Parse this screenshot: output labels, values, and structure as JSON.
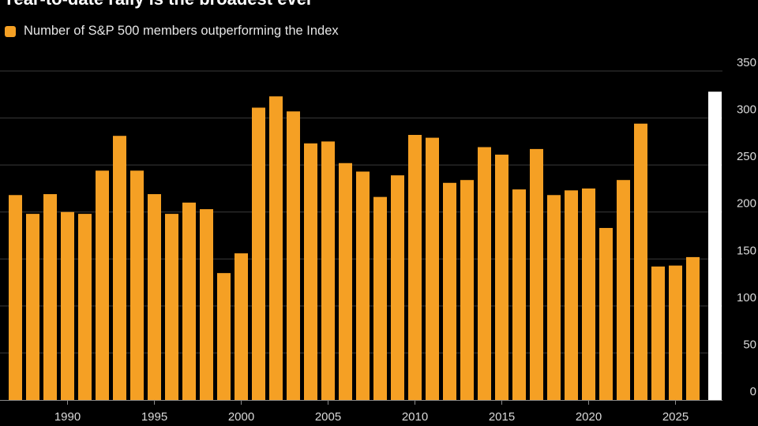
{
  "colors": {
    "background": "#000000",
    "bar": "#f5a024",
    "grid": "#3a3a3a",
    "current": "#ffffff",
    "text": "#d9d9d9"
  },
  "chart_data": {
    "type": "bar",
    "title": "Year-to-date rally is the broadest ever",
    "legend": [
      "Number of S&P 500 members outperforming the Index"
    ],
    "legend_placement": "top-left",
    "ylim": [
      0,
      350
    ],
    "yticks": [
      0,
      50,
      100,
      150,
      200,
      250,
      300,
      350
    ],
    "xticks": [
      1990,
      1995,
      2000,
      2005,
      2010,
      2015,
      2020,
      2025
    ],
    "grid": true,
    "categories": [
      1987,
      1988,
      1989,
      1990,
      1991,
      1992,
      1993,
      1994,
      1995,
      1996,
      1997,
      1998,
      1999,
      2000,
      2001,
      2002,
      2003,
      2004,
      2005,
      2006,
      2007,
      2008,
      2009,
      2010,
      2011,
      2012,
      2013,
      2014,
      2015,
      2016,
      2017,
      2018,
      2019,
      2020,
      2021,
      2022,
      2023,
      2024,
      2025,
      2026
    ],
    "values": [
      218,
      198,
      219,
      200,
      198,
      244,
      281,
      244,
      219,
      198,
      210,
      203,
      135,
      156,
      311,
      323,
      307,
      273,
      275,
      252,
      243,
      216,
      239,
      282,
      279,
      231,
      234,
      269,
      261,
      224,
      267,
      218,
      223,
      225,
      183,
      234,
      294,
      142,
      143,
      152
    ],
    "current_value": 328
  }
}
